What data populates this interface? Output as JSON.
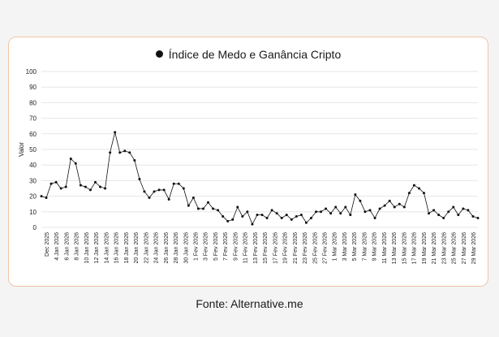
{
  "chart_data": {
    "type": "line",
    "title": "Índice de Medo e Ganância Cripto",
    "ylabel": "Valor",
    "xlabel": "",
    "ylim": [
      0,
      100
    ],
    "yticks": [
      0,
      10,
      20,
      30,
      40,
      50,
      60,
      70,
      80,
      90,
      100
    ],
    "grid": true,
    "legend": "top",
    "series_color": "#111111",
    "x_tick_labels": [
      "Dec 2025",
      "4 Jan 2026",
      "6 Jan 2026",
      "8 Jan 2026",
      "10 Jan 2026",
      "12 Jan 2026",
      "14 Jan 2026",
      "16 Jan 2026",
      "18 Jan 2026",
      "20 Jan 2026",
      "22 Jan 2026",
      "24 Jan 2026",
      "26 Jan 2026",
      "28 Jan 2026",
      "30 Jan 2026",
      "1 Fev 2026",
      "3 Fev 2026",
      "5 Fev 2026",
      "7 Fev 2026",
      "9 Fev 2026",
      "11 Fev 2026",
      "13 Fev 2026",
      "15 Fev 2026",
      "17 Fev 2026",
      "19 Fev 2026",
      "21 Fev 2026",
      "23 Fev 2026",
      "25 Fev 2026",
      "27 Fev 2026",
      "1 Mar 2026",
      "3 Mar 2026",
      "5 Mar 2026",
      "7 Mar 2026",
      "9 Mar 2026",
      "11 Mar 2026",
      "13 Mar 2026",
      "15 Mar 2026",
      "17 Mar 2026",
      "19 Mar 2026",
      "21 Mar 2026",
      "23 Mar 2026",
      "25 Mar 2026",
      "27 Mar 2026",
      "29 Mar 2026"
    ],
    "values": [
      20,
      19,
      28,
      29,
      25,
      26,
      44,
      41,
      27,
      26,
      24,
      29,
      26,
      25,
      48,
      61,
      48,
      49,
      48,
      43,
      31,
      23,
      19,
      23,
      24,
      24,
      18,
      28,
      28,
      25,
      14,
      19,
      12,
      12,
      16,
      12,
      11,
      7,
      4,
      5,
      13,
      7,
      10,
      2,
      8,
      8,
      6,
      11,
      9,
      6,
      8,
      5,
      7,
      8,
      3,
      6,
      10,
      10,
      12,
      9,
      13,
      9,
      13,
      8,
      21,
      17,
      10,
      11,
      6,
      12,
      14,
      17,
      13,
      15,
      13,
      22,
      27,
      25,
      22,
      9,
      11,
      8,
      6,
      10,
      13,
      8,
      12,
      11,
      7,
      6
    ]
  },
  "source": "Fonte: Alternative.me"
}
